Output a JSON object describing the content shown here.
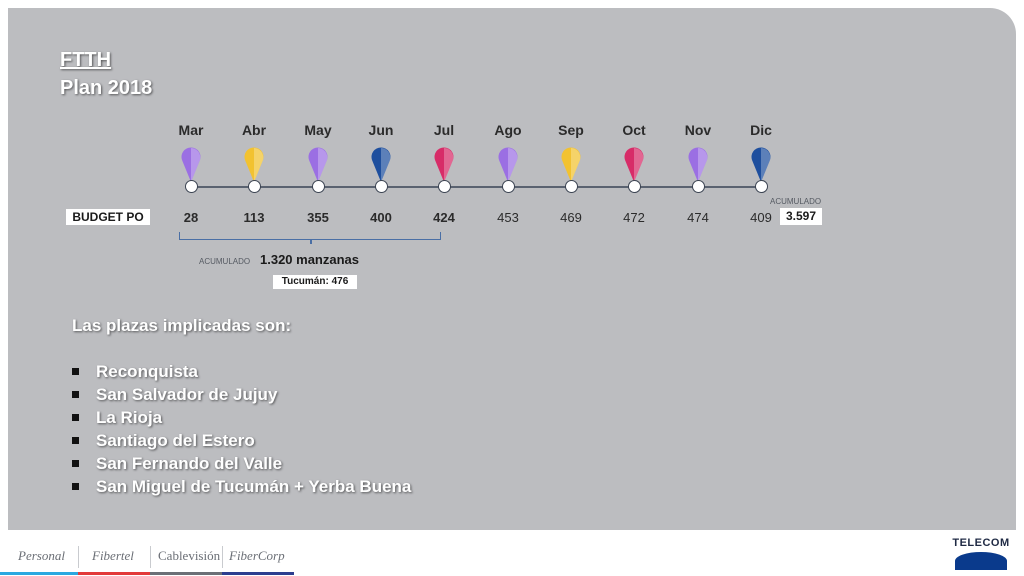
{
  "title": {
    "line1": "FTTH",
    "line2": "Plan 2018"
  },
  "timeline": {
    "months": [
      "Mar",
      "Abr",
      "May",
      "Jun",
      "Jul",
      "Ago",
      "Sep",
      "Oct",
      "Nov",
      "Dic"
    ],
    "budget_label": "BUDGET PO",
    "values": [
      "28",
      "113",
      "355",
      "400",
      "424",
      "453",
      "469",
      "472",
      "474",
      "409"
    ],
    "acumulado_label": "ACUMULADO",
    "acumulado_total": "3.597",
    "pin_colors": [
      "#9b6fe3",
      "#f2c230",
      "#9b6fe3",
      "#1e4f9e",
      "#d72c68",
      "#9b6fe3",
      "#f2c230",
      "#d72c68",
      "#9b6fe3",
      "#1e4f9e"
    ]
  },
  "summary": {
    "acumulado_label": "ACUMULADO",
    "manzanas": "1.320 manzanas",
    "tucuman": "Tucumán:  476"
  },
  "plazas": {
    "title": "Las plazas implicadas son:",
    "items": [
      "Reconquista",
      "San Salvador de Jujuy",
      "La Rioja",
      "Santiago del Estero",
      "San Fernando del Valle",
      "San Miguel de Tucumán + Yerba Buena"
    ]
  },
  "footer": {
    "brands": [
      "Personal",
      "Fibertel",
      "Cablevisión",
      "FiberCorp"
    ],
    "brand_colors": [
      "#2aa8e0",
      "#e23a3a",
      "#6b6f76",
      "#2c3e8f"
    ],
    "logo": "TELECOM"
  }
}
